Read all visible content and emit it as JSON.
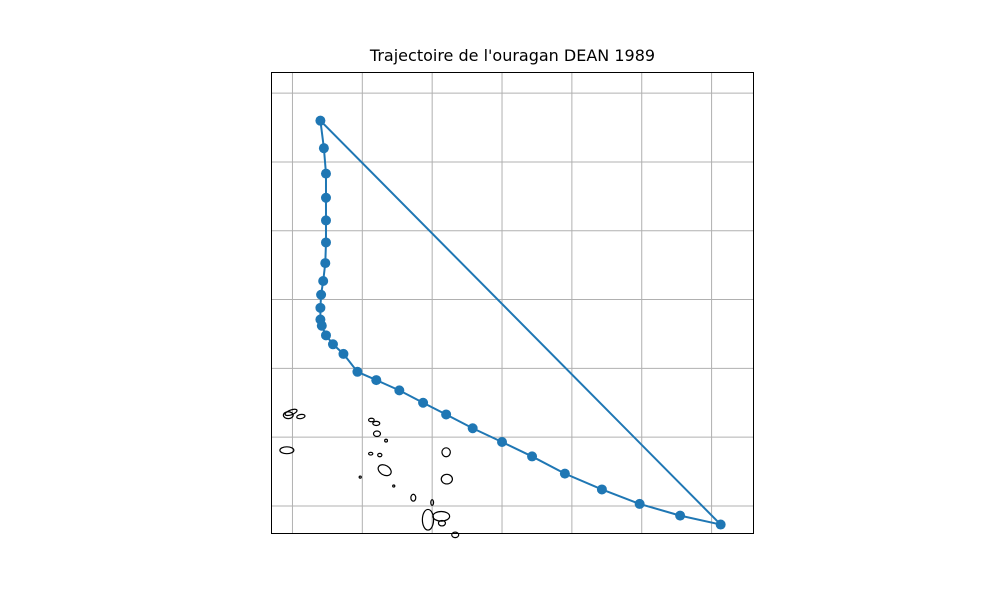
{
  "title": "Trajectoire de l'ouragan DEAN 1989",
  "colors": {
    "track": "#1f77b4",
    "grid": "#b0b0b0",
    "coast": "#000000",
    "frame": "#000000"
  },
  "map": {
    "projection": "PlateCarree",
    "lon_range": [
      -63.3,
      -56.4
    ],
    "lat_range": [
      15.6,
      22.3
    ],
    "grid": true,
    "gridlines_lon": [
      -63,
      -62,
      -61,
      -60,
      -59,
      -58,
      -57
    ],
    "gridlines_lat": [
      16,
      17,
      18,
      19,
      20,
      21,
      22
    ]
  },
  "track": {
    "name": "DEAN 1989",
    "closed": true,
    "lons": [
      -62.6,
      -62.55,
      -62.52,
      -62.52,
      -62.52,
      -62.52,
      -62.53,
      -62.56,
      -62.59,
      -62.6,
      -62.6,
      -62.58,
      -62.52,
      -62.42,
      -62.27,
      -62.07,
      -61.8,
      -61.47,
      -61.13,
      -60.8,
      -60.42,
      -60.0,
      -59.57,
      -59.1,
      -58.57,
      -58.03,
      -57.45,
      -56.87
    ],
    "lats": [
      21.6,
      21.2,
      20.83,
      20.48,
      20.15,
      19.83,
      19.53,
      19.27,
      19.07,
      18.88,
      18.71,
      18.62,
      18.48,
      18.35,
      18.21,
      17.95,
      17.83,
      17.68,
      17.5,
      17.33,
      17.13,
      16.93,
      16.72,
      16.47,
      16.24,
      16.03,
      15.86,
      15.73
    ]
  },
  "islands": [
    {
      "name": "anguilla",
      "lon": -63.02,
      "lat": 17.36,
      "rx": 0.09,
      "ry": 0.035,
      "rot": -20
    },
    {
      "name": "st-martin",
      "lon": -63.06,
      "lat": 17.32,
      "rx": 0.07,
      "ry": 0.05,
      "rot": 0
    },
    {
      "name": "st-barthelemy",
      "lon": -62.88,
      "lat": 17.3,
      "rx": 0.06,
      "ry": 0.03,
      "rot": -10
    },
    {
      "name": "saba",
      "lon": -63.08,
      "lat": 16.81,
      "rx": 0.1,
      "ry": 0.05,
      "rot": 0
    },
    {
      "name": "barbuda",
      "lon": -61.87,
      "lat": 17.25,
      "rx": 0.04,
      "ry": 0.025,
      "rot": 0
    },
    {
      "name": "antigua-north",
      "lon": -61.8,
      "lat": 17.2,
      "rx": 0.05,
      "ry": 0.03,
      "rot": 0
    },
    {
      "name": "antigua",
      "lon": -61.79,
      "lat": 17.05,
      "rx": 0.05,
      "ry": 0.04,
      "rot": 0
    },
    {
      "name": "redonda",
      "lon": -61.66,
      "lat": 16.95,
      "rx": 0.02,
      "ry": 0.02,
      "rot": 0
    },
    {
      "name": "st-kitts",
      "lon": -61.88,
      "lat": 16.76,
      "rx": 0.03,
      "ry": 0.02,
      "rot": 0
    },
    {
      "name": "nevis",
      "lon": -61.75,
      "lat": 16.74,
      "rx": 0.03,
      "ry": 0.025,
      "rot": 0
    },
    {
      "name": "montserrat",
      "lon": -61.68,
      "lat": 16.52,
      "rx": 0.1,
      "ry": 0.07,
      "rot": 30
    },
    {
      "name": "antigua-main",
      "lon": -60.8,
      "lat": 16.78,
      "rx": 0.06,
      "ry": 0.065,
      "rot": 0
    },
    {
      "name": "barbuda-main",
      "lon": -60.79,
      "lat": 16.39,
      "rx": 0.08,
      "ry": 0.07,
      "rot": 0
    },
    {
      "name": "guadeloupe-basse-terre",
      "lon": -61.06,
      "lat": 15.8,
      "rx": 0.08,
      "ry": 0.15,
      "rot": 0
    },
    {
      "name": "guadeloupe-grande-terre",
      "lon": -60.87,
      "lat": 15.85,
      "rx": 0.12,
      "ry": 0.07,
      "rot": 0
    },
    {
      "name": "la-desirade",
      "lon": -60.86,
      "lat": 15.75,
      "rx": 0.05,
      "ry": 0.04,
      "rot": 0
    },
    {
      "name": "marie-galante",
      "lon": -61.0,
      "lat": 16.05,
      "rx": 0.02,
      "ry": 0.04,
      "rot": 0
    },
    {
      "name": "isle-small-1",
      "lon": -60.67,
      "lat": 15.58,
      "rx": 0.05,
      "ry": 0.04,
      "rot": 0
    },
    {
      "name": "isle-small-2",
      "lon": -62.03,
      "lat": 16.42,
      "rx": 0.015,
      "ry": 0.015,
      "rot": 0
    },
    {
      "name": "isle-small-3",
      "lon": -61.55,
      "lat": 16.29,
      "rx": 0.015,
      "ry": 0.015,
      "rot": 0
    },
    {
      "name": "isle-small-4",
      "lon": -61.27,
      "lat": 16.12,
      "rx": 0.035,
      "ry": 0.05,
      "rot": 0
    }
  ]
}
